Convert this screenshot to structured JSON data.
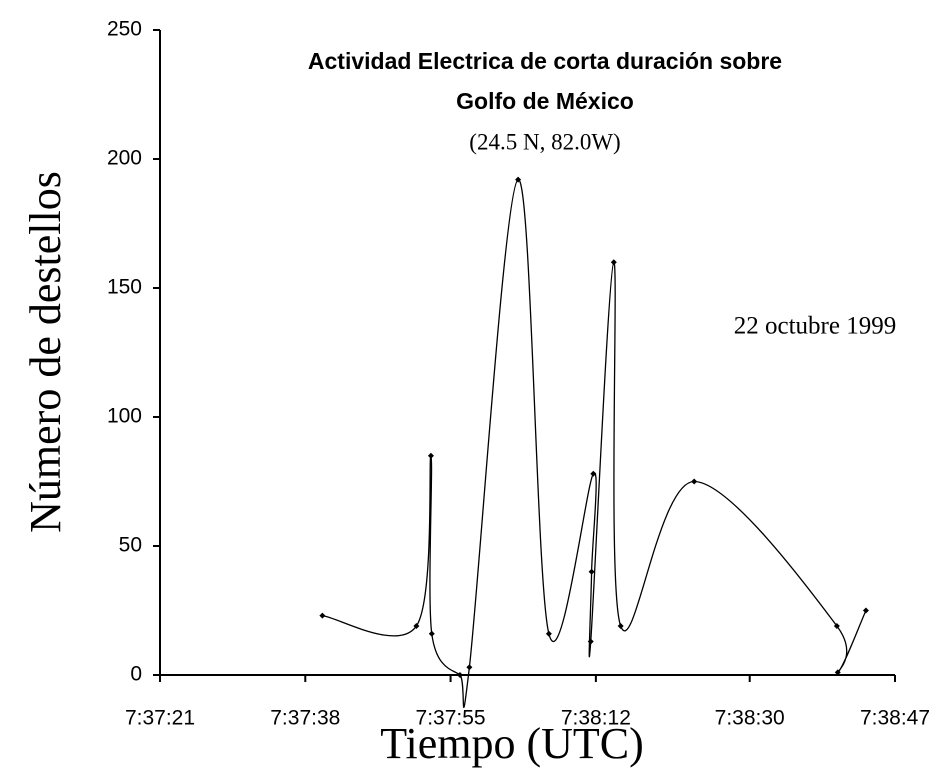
{
  "chart_data": {
    "type": "line",
    "title": [
      "Actividad Electrica de corta duración sobre",
      "Golfo de México"
    ],
    "subtitle": "(24.5 N, 82.0W)",
    "annotation": "22 octubre 1999",
    "x_label": "Tiempo (UTC)",
    "y_label": "Número de destellos",
    "x": [
      27460,
      27471,
      27472.7,
      27472.8,
      27476.1,
      27477.2,
      27482.9,
      27486.5,
      27491.7,
      27491.5,
      27491.4,
      27494.1,
      27494.9,
      27503.5,
      27520.2,
      27520.3,
      27523.6
    ],
    "series": [
      {
        "name": "destellos",
        "color": "#000000",
        "values": [
          23,
          19,
          85,
          16,
          0,
          3,
          192,
          16,
          78,
          40,
          13,
          160,
          19,
          75,
          19,
          1,
          25
        ]
      }
    ],
    "xlim": [
      27441,
      27527
    ],
    "xticks": [
      {
        "value": 27441,
        "label": "7:37:21"
      },
      {
        "value": 27458,
        "label": "7:37:38"
      },
      {
        "value": 27475,
        "label": "7:37:55"
      },
      {
        "value": 27492,
        "label": "7:38:12"
      },
      {
        "value": 27510,
        "label": "7:38:30"
      },
      {
        "value": 27527,
        "label": "7:38:47"
      }
    ],
    "ylim": [
      0,
      250
    ],
    "yticks": [
      0,
      50,
      100,
      150,
      200,
      250
    ],
    "grid": false
  }
}
